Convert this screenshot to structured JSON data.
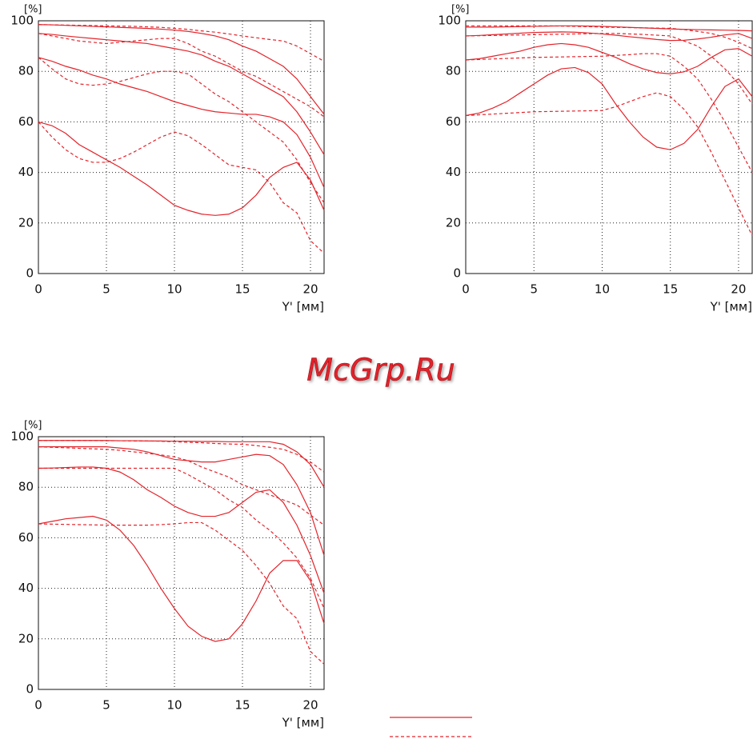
{
  "watermark": "McGrp.Ru",
  "chart_data": [
    {
      "type": "line",
      "ylabel": "[%]",
      "xlabel": "Y' [мм]",
      "grid": true,
      "x": [
        0,
        1,
        2,
        3,
        4,
        5,
        6,
        7,
        8,
        9,
        10,
        11,
        12,
        13,
        14,
        15,
        16,
        17,
        18,
        19,
        20,
        21
      ],
      "xlim": [
        0,
        21
      ],
      "xticks": [
        0,
        5,
        10,
        15,
        20
      ],
      "ylim": [
        0,
        100
      ],
      "yticks": [
        0,
        20,
        40,
        60,
        80,
        100
      ],
      "series": [
        {
          "color": "#e3242b",
          "dash": false,
          "values": [
            98.5,
            98.4,
            98.2,
            98,
            97.8,
            97.6,
            97.4,
            97.2,
            97,
            96.7,
            96.3,
            95.8,
            95,
            94,
            92.5,
            90,
            88,
            85,
            82,
            77,
            70,
            63
          ]
        },
        {
          "color": "#e3242b",
          "dash": false,
          "values": [
            95,
            94.6,
            94,
            93.5,
            93,
            92.5,
            92,
            91.5,
            91,
            90,
            89,
            88,
            86.5,
            84,
            82,
            79,
            76,
            73,
            70,
            64,
            56,
            47
          ]
        },
        {
          "color": "#e3242b",
          "dash": false,
          "values": [
            85.5,
            84,
            82,
            80.5,
            78.5,
            77,
            75,
            73.5,
            72,
            70,
            68,
            66.5,
            65,
            64,
            63.5,
            63,
            63,
            62,
            60,
            55,
            46,
            34
          ]
        },
        {
          "color": "#e3242b",
          "dash": false,
          "values": [
            60,
            58.5,
            55.5,
            51,
            48,
            45,
            42,
            38.5,
            35,
            31,
            27,
            25,
            23.5,
            23,
            23.5,
            26,
            31,
            38,
            42,
            44,
            37,
            25
          ]
        },
        {
          "color": "#e3242b",
          "dash": true,
          "values": [
            98.5,
            98.4,
            98.3,
            98.2,
            98.1,
            98,
            97.9,
            97.8,
            97.6,
            97.4,
            97,
            96.6,
            96,
            95.5,
            94.8,
            94,
            93.3,
            92.6,
            92,
            90,
            87,
            84
          ]
        },
        {
          "color": "#e3242b",
          "dash": true,
          "values": [
            95,
            94,
            93,
            92,
            91.5,
            91,
            91.5,
            92,
            92.5,
            93,
            93,
            91,
            88,
            86,
            83,
            80,
            78,
            75,
            72,
            69,
            66,
            62
          ]
        },
        {
          "color": "#e3242b",
          "dash": true,
          "values": [
            85.5,
            81,
            77,
            75,
            74.5,
            75,
            76,
            77.5,
            79,
            80,
            80,
            79,
            75,
            71,
            68,
            64,
            60,
            56,
            52,
            45,
            36,
            28
          ]
        },
        {
          "color": "#e3242b",
          "dash": true,
          "values": [
            60,
            54,
            49,
            45.5,
            44,
            44,
            45.5,
            48,
            51,
            54,
            56,
            54.5,
            51,
            47,
            43,
            42,
            41,
            36,
            28,
            24,
            13,
            8
          ]
        }
      ]
    },
    {
      "type": "line",
      "ylabel": "[%]",
      "xlabel": "Y' [мм]",
      "grid": true,
      "x": [
        0,
        1,
        2,
        3,
        4,
        5,
        6,
        7,
        8,
        9,
        10,
        11,
        12,
        13,
        14,
        15,
        16,
        17,
        18,
        19,
        20,
        21
      ],
      "xlim": [
        0,
        21
      ],
      "xticks": [
        0,
        5,
        10,
        15,
        20
      ],
      "ylim": [
        0,
        100
      ],
      "yticks": [
        0,
        20,
        40,
        60,
        80,
        100
      ],
      "series": [
        {
          "color": "#e3242b",
          "dash": false,
          "values": [
            97.5,
            97.5,
            97.5,
            97.6,
            97.7,
            97.8,
            97.9,
            98,
            98,
            97.9,
            97.8,
            97.6,
            97.4,
            97.2,
            97,
            96.8,
            96.6,
            96.5,
            96.4,
            96.3,
            96.2,
            96
          ]
        },
        {
          "color": "#e3242b",
          "dash": false,
          "values": [
            94,
            94.2,
            94.5,
            94.8,
            95.1,
            95.4,
            95.5,
            95.6,
            95.5,
            95.2,
            94.8,
            94.3,
            93.7,
            93.2,
            92.6,
            92.2,
            92.3,
            92.8,
            93.5,
            94.4,
            95,
            93
          ]
        },
        {
          "color": "#e3242b",
          "dash": false,
          "values": [
            84.5,
            85,
            86,
            87,
            88,
            89.5,
            90.5,
            91,
            90.5,
            89.5,
            87.5,
            85.5,
            83,
            81,
            79.5,
            79,
            79.8,
            82,
            85.5,
            88.5,
            89,
            86
          ]
        },
        {
          "color": "#e3242b",
          "dash": false,
          "values": [
            62.5,
            63.5,
            65.5,
            68,
            71.5,
            75,
            78.5,
            81,
            81.5,
            79.5,
            75,
            67,
            60,
            54,
            50,
            49,
            51.5,
            57,
            66,
            74,
            77,
            70
          ]
        },
        {
          "color": "#e3242b",
          "dash": true,
          "values": [
            98,
            98,
            98,
            98,
            98,
            98,
            98,
            97.9,
            97.8,
            97.7,
            97.5,
            97.4,
            97.3,
            97.2,
            97.1,
            97,
            96.5,
            95.8,
            95,
            93.5,
            91.5,
            89
          ]
        },
        {
          "color": "#e3242b",
          "dash": true,
          "values": [
            94,
            94.1,
            94.2,
            94.3,
            94.4,
            94.5,
            94.6,
            94.7,
            94.8,
            94.9,
            95,
            95,
            94.8,
            94.6,
            94.3,
            94,
            92,
            90,
            86,
            81,
            75,
            67
          ]
        },
        {
          "color": "#e3242b",
          "dash": true,
          "values": [
            84.5,
            84.7,
            84.9,
            85.1,
            85.3,
            85.5,
            85.6,
            85.7,
            85.8,
            85.9,
            86,
            86.3,
            86.6,
            87,
            87,
            86,
            82,
            77,
            69,
            60,
            50,
            40
          ]
        },
        {
          "color": "#e3242b",
          "dash": true,
          "values": [
            62.5,
            62.8,
            63.1,
            63.4,
            63.7,
            64,
            64.1,
            64.2,
            64.3,
            64.4,
            64.5,
            66,
            68,
            70,
            71.5,
            70,
            65,
            58,
            48,
            37,
            26,
            15
          ]
        }
      ]
    },
    {
      "type": "line",
      "ylabel": "[%]",
      "xlabel": "Y' [мм]",
      "grid": true,
      "x": [
        0,
        1,
        2,
        3,
        4,
        5,
        6,
        7,
        8,
        9,
        10,
        11,
        12,
        13,
        14,
        15,
        16,
        17,
        18,
        19,
        20,
        21
      ],
      "xlim": [
        0,
        21
      ],
      "xticks": [
        0,
        5,
        10,
        15,
        20
      ],
      "ylim": [
        0,
        100
      ],
      "yticks": [
        0,
        20,
        40,
        60,
        80,
        100
      ],
      "series": [
        {
          "color": "#e3242b",
          "dash": false,
          "values": [
            98.5,
            98.5,
            98.5,
            98.5,
            98.5,
            98.5,
            98.4,
            98.4,
            98.3,
            98.3,
            98.2,
            98.2,
            98.1,
            98.1,
            98,
            98,
            98,
            98,
            97,
            94,
            89,
            80
          ]
        },
        {
          "color": "#e3242b",
          "dash": false,
          "values": [
            96,
            96,
            96,
            96,
            96,
            96,
            95.5,
            95,
            94,
            92.5,
            91,
            90.5,
            90,
            90,
            91,
            92,
            93,
            92.5,
            89,
            81,
            70,
            53
          ]
        },
        {
          "color": "#e3242b",
          "dash": false,
          "values": [
            87.5,
            87.6,
            87.8,
            88,
            88,
            87.5,
            86,
            83,
            79,
            76,
            72.5,
            70,
            68.5,
            68.5,
            70,
            74,
            78,
            79,
            74,
            65,
            53,
            38
          ]
        },
        {
          "color": "#e3242b",
          "dash": false,
          "values": [
            65.5,
            66.5,
            67.5,
            68,
            68.5,
            67,
            63,
            57,
            49,
            40,
            32,
            25,
            21,
            19,
            20,
            26,
            35,
            46,
            51,
            51,
            43,
            26
          ]
        },
        {
          "color": "#e3242b",
          "dash": true,
          "values": [
            98.5,
            98.5,
            98.5,
            98.5,
            98.5,
            98.4,
            98.4,
            98.3,
            98.3,
            98.2,
            98,
            97.8,
            97.6,
            97.3,
            97.1,
            97,
            96.5,
            95.8,
            95,
            93,
            90,
            86
          ]
        },
        {
          "color": "#e3242b",
          "dash": true,
          "values": [
            96,
            95.8,
            95.6,
            95.4,
            95.2,
            95,
            94.6,
            94,
            93.4,
            92.8,
            92,
            90.5,
            88,
            86,
            84,
            81,
            79,
            77,
            75,
            73,
            69,
            65
          ]
        },
        {
          "color": "#e3242b",
          "dash": true,
          "values": [
            87.5,
            87.5,
            87.5,
            87.5,
            87.5,
            87.5,
            87.5,
            87.5,
            87.5,
            87.5,
            87.5,
            85,
            82,
            79,
            75,
            72,
            67,
            63,
            58,
            52,
            44,
            32
          ]
        },
        {
          "color": "#e3242b",
          "dash": true,
          "values": [
            65.5,
            65.4,
            65.3,
            65.2,
            65.1,
            65,
            65,
            65,
            65,
            65.2,
            65.5,
            66,
            66,
            63,
            59,
            55,
            49,
            42,
            33,
            28,
            15,
            10
          ]
        }
      ]
    }
  ]
}
